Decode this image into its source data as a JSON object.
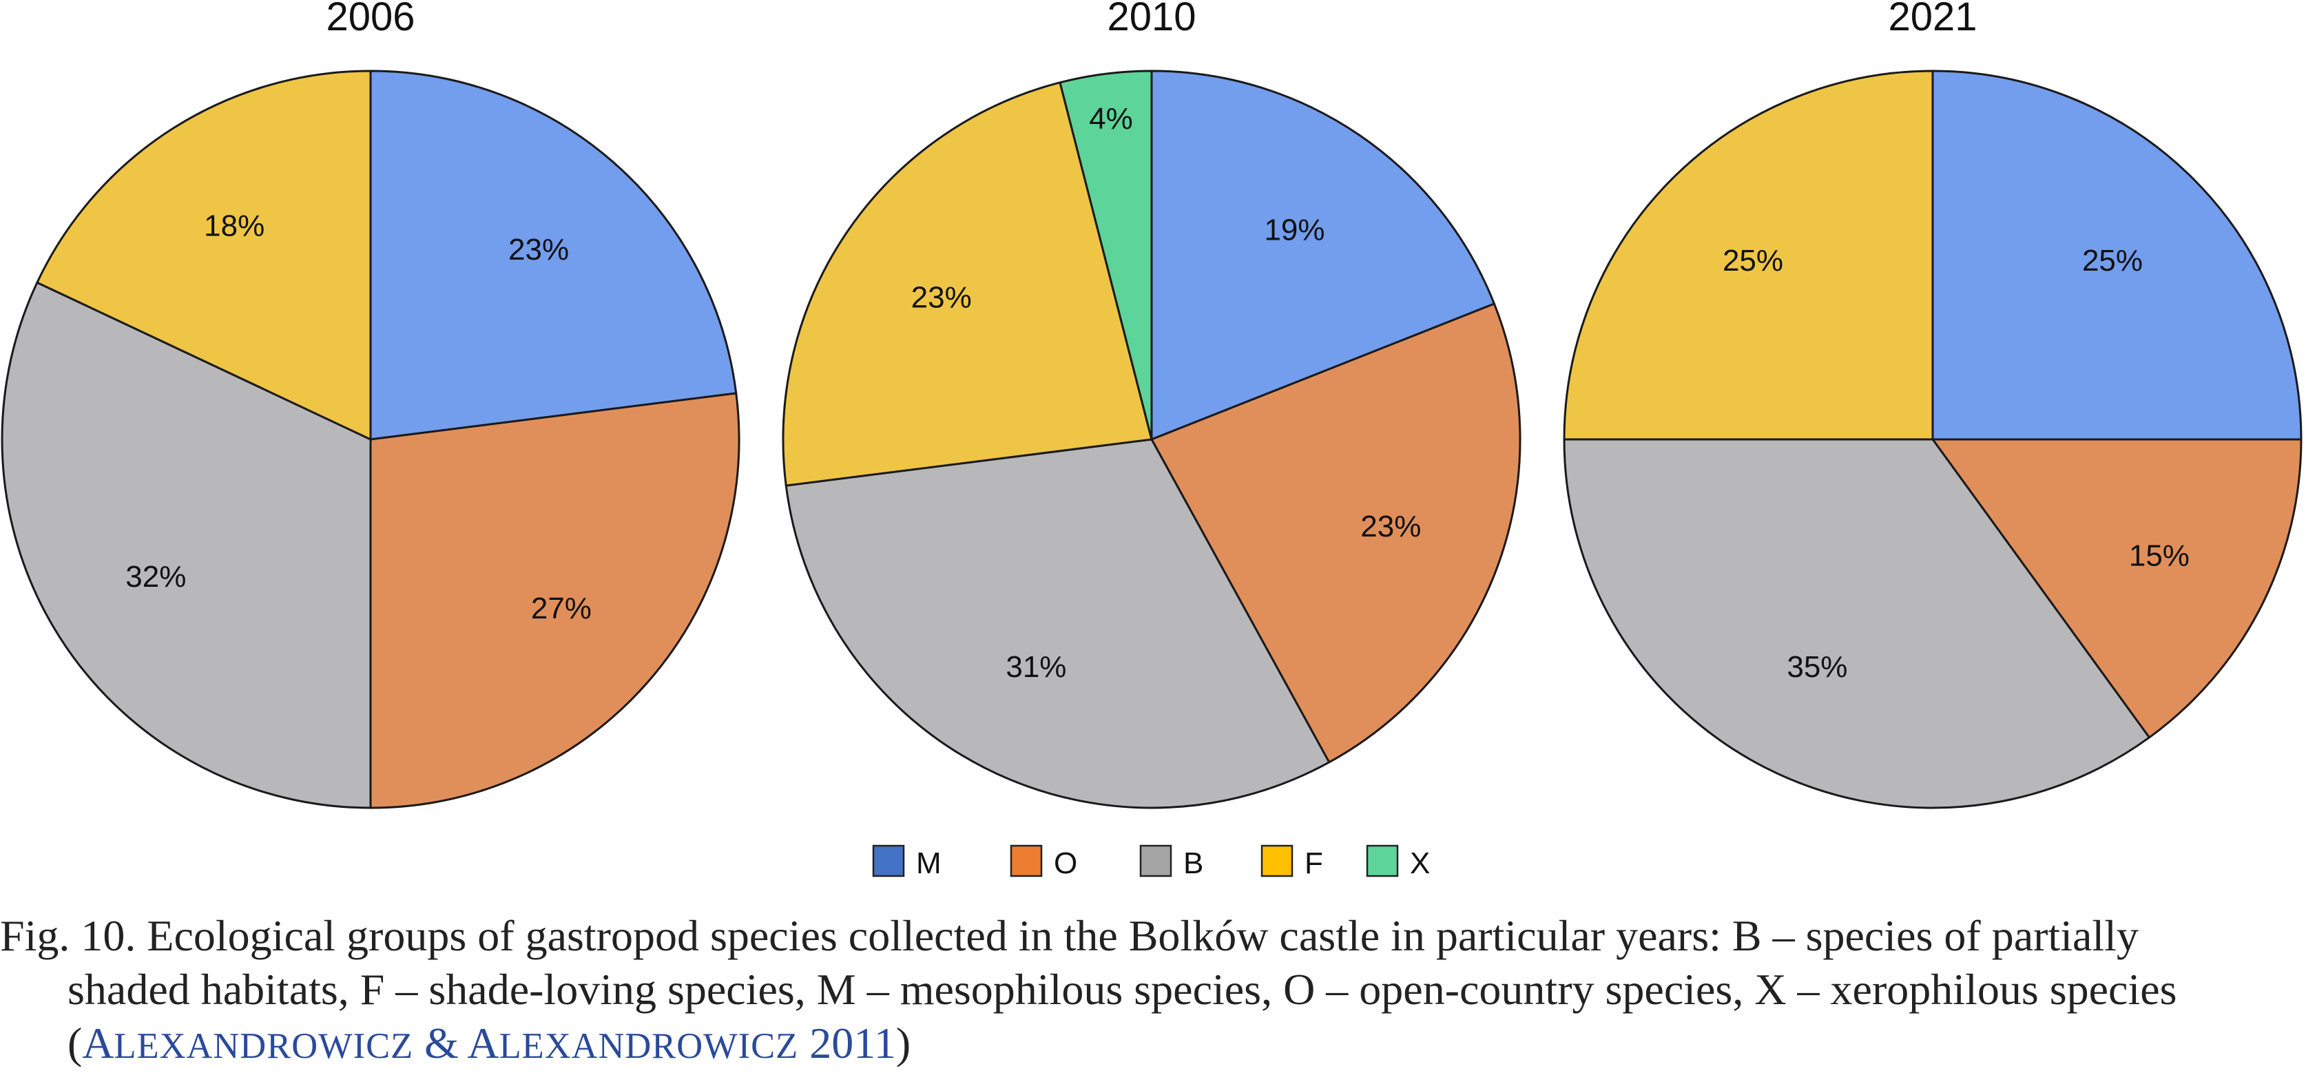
{
  "chart_data": [
    {
      "type": "pie",
      "title": "2006",
      "slices": [
        {
          "label": "M",
          "value": 23,
          "text": "23%"
        },
        {
          "label": "O",
          "value": 27,
          "text": "27%"
        },
        {
          "label": "B",
          "value": 32,
          "text": "32%"
        },
        {
          "label": "F",
          "value": 18,
          "text": "18%"
        }
      ]
    },
    {
      "type": "pie",
      "title": "2010",
      "slices": [
        {
          "label": "M",
          "value": 19,
          "text": "19%"
        },
        {
          "label": "O",
          "value": 23,
          "text": "23%"
        },
        {
          "label": "B",
          "value": 31,
          "text": "31%"
        },
        {
          "label": "F",
          "value": 23,
          "text": "23%"
        },
        {
          "label": "X",
          "value": 4,
          "text": "4%"
        }
      ]
    },
    {
      "type": "pie",
      "title": "2021",
      "slices": [
        {
          "label": "M",
          "value": 25,
          "text": "25%"
        },
        {
          "label": "O",
          "value": 15,
          "text": "15%"
        },
        {
          "label": "B",
          "value": 35,
          "text": "35%"
        },
        {
          "label": "F",
          "value": 25,
          "text": "25%"
        }
      ]
    }
  ],
  "colors": {
    "M": "#739ded",
    "O": "#e08f5b",
    "B": "#b8b8bb",
    "F": "#efc545",
    "X": "#5cd49a"
  },
  "legend": {
    "placement": "bottom-center",
    "items": [
      {
        "label": "M",
        "swatch": "#4472c4"
      },
      {
        "label": "O",
        "swatch": "#ed7d31"
      },
      {
        "label": "B",
        "swatch": "#a5a5a5"
      },
      {
        "label": "F",
        "swatch": "#ffc000"
      },
      {
        "label": "X",
        "swatch": "#5cd49a"
      }
    ]
  },
  "caption": {
    "line1": "Fig. 10. Ecological groups of gastropod species collected in the Bolków castle in particular years: B – species of partially",
    "line2": "shaded habitats, F – shade-loving species, M – mesophilous species, O – open-country species, X – xerophilous species",
    "ref_open": "(",
    "ref_a1": "A",
    "ref_a2": "LEXANDROWICZ",
    "ref_amp": " & ",
    "ref_b1": "A",
    "ref_b2": "LEXANDROWICZ",
    "ref_year": " 2011",
    "ref_close": ")"
  }
}
